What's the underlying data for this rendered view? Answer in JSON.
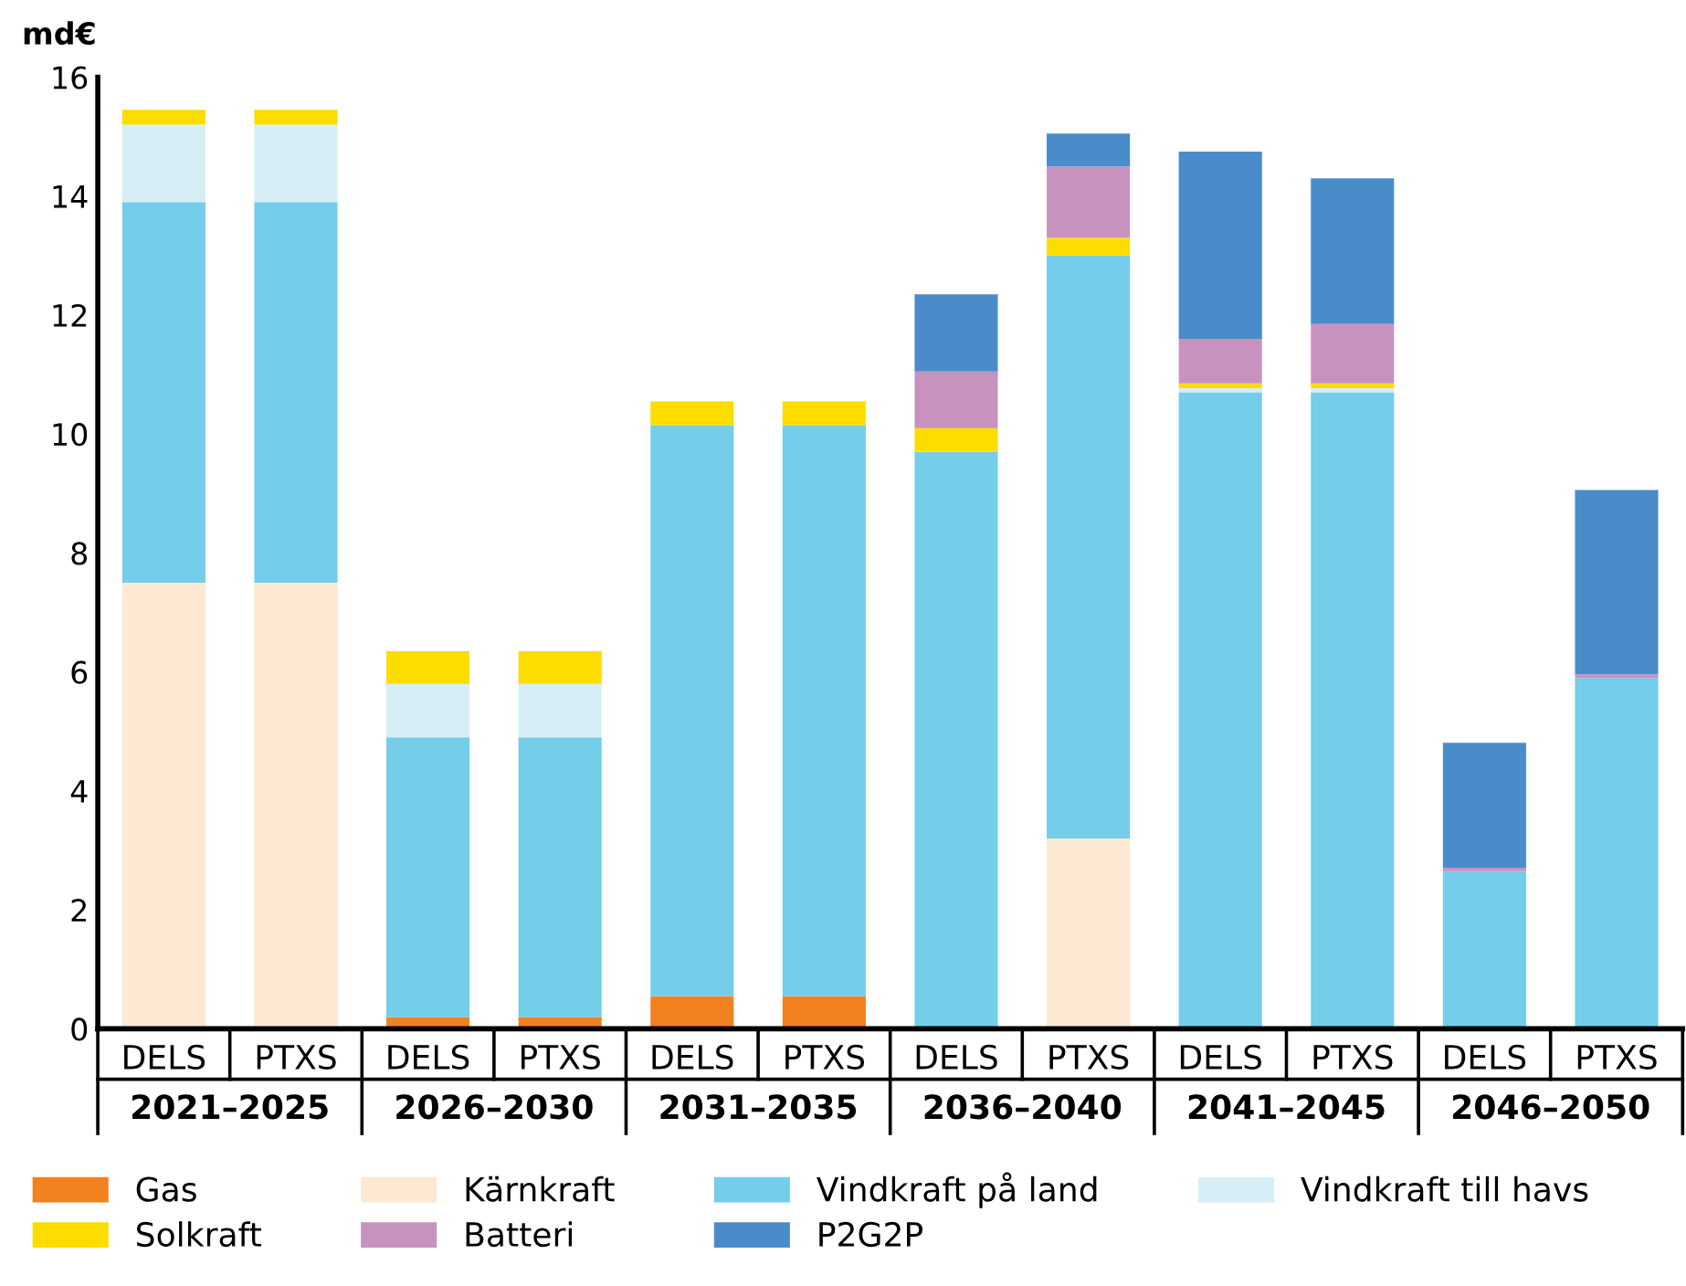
{
  "chart_data": {
    "type": "bar",
    "stacked": true,
    "ylabel": "md€",
    "categories": [
      "DELS",
      "PTXS",
      "DELS",
      "PTXS",
      "DELS",
      "PTXS",
      "DELS",
      "PTXS",
      "DELS",
      "PTXS",
      "DELS",
      "PTXS"
    ],
    "annotations": [
      "2021–2025",
      "2026–2030",
      "2031–2035",
      "2036–2040",
      "2041–2045",
      "2046–2050"
    ],
    "series": [
      {
        "name": "Gas",
        "color": "#f28220",
        "values": [
          null,
          null,
          0.2,
          0.2,
          0.55,
          0.55,
          null,
          null,
          null,
          null,
          null,
          null
        ]
      },
      {
        "name": "Kärnkraft",
        "color": "#fde8d3",
        "values": [
          7.5,
          7.5,
          null,
          null,
          null,
          null,
          null,
          3.2,
          null,
          null,
          null,
          null
        ]
      },
      {
        "name": "Vindkraft på land",
        "color": "#74cde9",
        "values": [
          6.4,
          6.4,
          4.7,
          4.7,
          9.6,
          9.6,
          9.7,
          9.8,
          10.7,
          10.7,
          2.65,
          5.9
        ]
      },
      {
        "name": "Vindkraft till havs",
        "color": "#d6eff6",
        "values": [
          1.3,
          1.3,
          0.9,
          0.9,
          null,
          null,
          null,
          null,
          0.07,
          0.07,
          null,
          null
        ]
      },
      {
        "name": "Solkraft",
        "color": "#fddc00",
        "values": [
          0.25,
          0.25,
          0.55,
          0.55,
          0.4,
          0.4,
          0.4,
          0.3,
          0.08,
          0.08,
          null,
          null
        ]
      },
      {
        "name": "Batteri",
        "color": "#c793be",
        "values": [
          null,
          null,
          null,
          null,
          null,
          null,
          0.95,
          1.2,
          0.75,
          1.0,
          0.06,
          0.06
        ]
      },
      {
        "name": "P2G2P",
        "color": "#4a8cca",
        "values": [
          null,
          null,
          null,
          null,
          null,
          null,
          1.3,
          0.55,
          3.15,
          2.45,
          2.1,
          3.1
        ]
      }
    ],
    "ylim": [
      0,
      16
    ],
    "yticks": [
      0,
      2,
      4,
      6,
      8,
      10,
      12,
      14,
      16
    ],
    "grid": false,
    "legend": "bottom"
  }
}
